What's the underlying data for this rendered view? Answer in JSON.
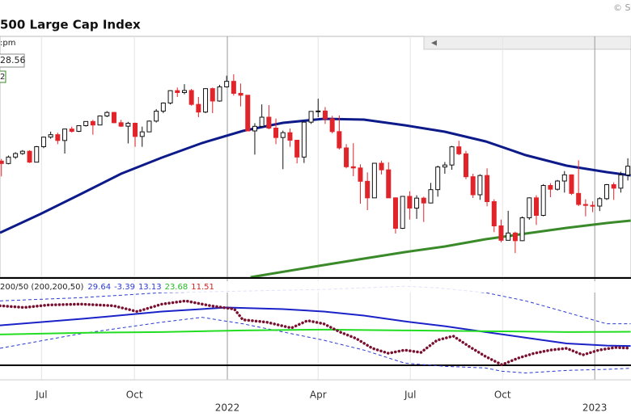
{
  "header": {
    "title": "500 Large Cap Index",
    "copyright": "© St",
    "time": ":pm",
    "last": "28.56",
    "badge": "2"
  },
  "chart_data": [
    {
      "type": "candlestick",
      "x": [
        0,
        1,
        2,
        3,
        4,
        5,
        6,
        7,
        8,
        9,
        10,
        11,
        12,
        13,
        14,
        15,
        16,
        17,
        18,
        19,
        20,
        21,
        22,
        23,
        24,
        25,
        26,
        27,
        28,
        29,
        30,
        31,
        32,
        33,
        34,
        35,
        36,
        37,
        38,
        39,
        40,
        41,
        42,
        43,
        44,
        45,
        46,
        47,
        48,
        49,
        50,
        51,
        52,
        53,
        54,
        55,
        56,
        57,
        58,
        59,
        60,
        61,
        62,
        63,
        64,
        65,
        66,
        67,
        68,
        69,
        70,
        71,
        72,
        73,
        74,
        75,
        76,
        77,
        78,
        79,
        80,
        81,
        82,
        83,
        84,
        85,
        86,
        87,
        88,
        89,
        90
      ],
      "open": [
        4150,
        4174,
        4156,
        4204,
        4230,
        4247,
        4166,
        4281,
        4352,
        4370,
        4327,
        4412,
        4395,
        4437,
        4468,
        4442,
        4509,
        4535,
        4459,
        4433,
        4455,
        4357,
        4391,
        4471,
        4545,
        4605,
        4697,
        4683,
        4698,
        4595,
        4538,
        4712,
        4620,
        4725,
        4766,
        4677,
        4663,
        4398,
        4432,
        4500,
        4419,
        4349,
        4385,
        4329,
        4204,
        4463,
        4543,
        4546,
        4488,
        4393,
        4272,
        4132,
        4123,
        4024,
        3901,
        4158,
        4109,
        3901,
        3675,
        3912,
        3825,
        3899,
        3863,
        3962,
        4130,
        4145,
        4280,
        4228,
        4058,
        3924,
        4067,
        3873,
        3693,
        3586,
        3640,
        3583,
        3753,
        3901,
        3771,
        3993,
        3965,
        4026,
        4072,
        3934,
        3852,
        3845,
        3840,
        3895,
        3999,
        3973,
        4071
      ],
      "high": [
        4200,
        4190,
        4215,
        4240,
        4256,
        4255,
        4286,
        4356,
        4393,
        4385,
        4415,
        4430,
        4440,
        4470,
        4480,
        4513,
        4545,
        4540,
        4480,
        4465,
        4460,
        4430,
        4475,
        4560,
        4610,
        4700,
        4720,
        4745,
        4710,
        4650,
        4715,
        4720,
        4740,
        4808,
        4818,
        4750,
        4665,
        4455,
        4595,
        4590,
        4490,
        4400,
        4416,
        4330,
        4465,
        4545,
        4637,
        4575,
        4510,
        4513,
        4300,
        4307,
        4150,
        4090,
        4160,
        4177,
        4165,
        3905,
        3915,
        3950,
        3920,
        3910,
        4012,
        4140,
        4167,
        4287,
        4325,
        4250,
        4080,
        4076,
        4120,
        3890,
        3740,
        3805,
        3650,
        3763,
        3905,
        3920,
        4003,
        4010,
        4034,
        4100,
        4075,
        4180,
        3890,
        3875,
        3906,
        4004,
        4016,
        4095,
        4195
      ],
      "low": [
        4130,
        4060,
        4150,
        4190,
        4220,
        4160,
        4165,
        4270,
        4340,
        4300,
        4230,
        4385,
        4390,
        4430,
        4370,
        4440,
        4500,
        4455,
        4427,
        4305,
        4280,
        4280,
        4390,
        4460,
        4530,
        4595,
        4650,
        4670,
        4585,
        4500,
        4530,
        4530,
        4615,
        4720,
        4660,
        4580,
        4395,
        4222,
        4430,
        4410,
        4300,
        4114,
        4280,
        4157,
        4160,
        4450,
        4500,
        4450,
        4380,
        4260,
        4120,
        4062,
        3858,
        3810,
        3900,
        4075,
        3900,
        3636,
        3670,
        3740,
        3745,
        3722,
        3860,
        3910,
        4080,
        4110,
        4218,
        4040,
        3900,
        3886,
        3838,
        3647,
        3571,
        3585,
        3491,
        3580,
        3738,
        3700,
        3764,
        3906,
        3955,
        3940,
        3923,
        3840,
        3764,
        3795,
        3803,
        3885,
        3886,
        3940,
        4030
      ],
      "close": [
        4174,
        4156,
        4204,
        4230,
        4247,
        4166,
        4281,
        4352,
        4370,
        4327,
        4412,
        4395,
        4437,
        4468,
        4442,
        4509,
        4535,
        4459,
        4433,
        4455,
        4357,
        4391,
        4471,
        4545,
        4605,
        4697,
        4683,
        4698,
        4595,
        4538,
        4712,
        4620,
        4725,
        4766,
        4677,
        4663,
        4398,
        4432,
        4500,
        4419,
        4349,
        4385,
        4329,
        4204,
        4463,
        4543,
        4546,
        4488,
        4393,
        4272,
        4132,
        4123,
        4024,
        3901,
        4158,
        4109,
        3901,
        3675,
        3912,
        3825,
        3899,
        3863,
        3962,
        4130,
        4145,
        4280,
        4228,
        4058,
        3924,
        4067,
        3873,
        3693,
        3586,
        3640,
        3583,
        3753,
        3901,
        3771,
        3993,
        3965,
        4026,
        4072,
        3934,
        3852,
        3845,
        3840,
        3895,
        3999,
        3973,
        4071,
        4136
      ],
      "up_color": "#111111",
      "down_color": "#e0242a",
      "xlim": [
        0.8,
        90.45
      ],
      "ylim": [
        3312,
        5100
      ],
      "xticks": [
        {
          "value": 6.7,
          "label": "Jul"
        },
        {
          "value": 19.9,
          "label": "Oct"
        },
        {
          "value": 33.1,
          "label": "2022"
        },
        {
          "value": 46,
          "label": "Apr"
        },
        {
          "value": 59.1,
          "label": "Jul"
        },
        {
          "value": 72.2,
          "label": "Oct"
        },
        {
          "value": 85.3,
          "label": "2023"
        }
      ],
      "lines": [
        {
          "color": "#0d1a8a",
          "x": [
            0.8,
            6.5,
            12.3,
            18,
            23.8,
            29.5,
            35.3,
            41,
            46.8,
            52.5,
            58.3,
            64,
            69.8,
            75.5,
            81.3,
            87,
            90.4
          ],
          "values": [
            3642,
            3780,
            3930,
            4080,
            4200,
            4308,
            4398,
            4458,
            4488,
            4482,
            4440,
            4392,
            4320,
            4218,
            4140,
            4092,
            4068
          ]
        },
        {
          "color": "#3a8a2a",
          "x": [
            36.4,
            46.8,
            52.5,
            58.3,
            64,
            69.8,
            75.5,
            81.3,
            87,
            90.4
          ],
          "values": [
            3312,
            3402,
            3450,
            3498,
            3540,
            3594,
            3636,
            3678,
            3714,
            3732
          ]
        }
      ]
    },
    {
      "type": "line",
      "title": "200/50 (200,200,50)",
      "readout": [
        {
          "value": 29.64,
          "color": "#2a3ad0"
        },
        {
          "value": -3.39,
          "color": "#2a3ad0"
        },
        {
          "value": 13.13,
          "color": "#2a3ad0"
        },
        {
          "value": 23.68,
          "color": "#22bb22"
        },
        {
          "value": 11.51,
          "color": "#d02020"
        }
      ],
      "xlim": [
        0.8,
        90.45
      ],
      "ylim": [
        -9,
        63
      ],
      "series": [
        {
          "color": "#2a3ad0",
          "style": "dashed",
          "x": [
            0.8,
            12.3,
            23.8,
            35.3,
            46.8,
            52.5,
            58.3,
            62.9,
            69.8,
            75.5,
            81.3,
            87,
            90.4
          ],
          "values": [
            46.6,
            49.0,
            52.7,
            53.9,
            55.1,
            56.3,
            57.5,
            56.3,
            52.7,
            46.6,
            38.1,
            29.6,
            29.6
          ]
        },
        {
          "color": "#2a3ad0",
          "style": "dashed",
          "x": [
            0.8,
            12.3,
            23.8,
            29.5,
            35.3,
            46.8,
            52.5,
            58.3,
            64,
            69.8,
            72.1,
            75.5,
            81.3,
            87,
            90.4
          ],
          "values": [
            11.4,
            22.3,
            30.8,
            34.4,
            29.6,
            17.4,
            10.1,
            0.4,
            -2.0,
            -3.2,
            -5.6,
            -6.9,
            -5.0,
            -4.2,
            -3.4
          ]
        },
        {
          "color": "#1a22c8",
          "style": "solid",
          "x": [
            0.8,
            12.3,
            23.8,
            33,
            41,
            46.8,
            52.5,
            58.3,
            64,
            69.8,
            75.5,
            81.3,
            87,
            90.4
          ],
          "values": [
            28.4,
            33.2,
            38.7,
            41.7,
            40.5,
            38.7,
            35.7,
            31.4,
            27.8,
            23.5,
            19.3,
            15.0,
            13.4,
            13.1
          ]
        },
        {
          "color": "#22dd22",
          "style": "solid",
          "x": [
            0.8,
            12.3,
            23.8,
            35.3,
            46.8,
            58.3,
            69.8,
            81.3,
            90.4
          ],
          "values": [
            21.7,
            22.9,
            23.5,
            24.7,
            25.3,
            24.7,
            24.1,
            23.5,
            23.7
          ]
        },
        {
          "color": "#7a1030",
          "style": "dotted",
          "x": [
            0.8,
            4.25,
            7.7,
            12.3,
            16.9,
            20.3,
            23.8,
            27.2,
            30.7,
            34.1,
            35.3,
            38.7,
            42.2,
            44.5,
            46.8,
            49.1,
            51.4,
            53.7,
            56,
            58.3,
            60.6,
            62.9,
            65.2,
            67.5,
            69.8,
            72.1,
            74.4,
            76.7,
            79,
            81.3,
            83.6,
            85.9,
            88.2,
            90.4
          ],
          "values": [
            43.0,
            41.7,
            43.6,
            44.2,
            43.0,
            38.7,
            44.2,
            46.6,
            43.0,
            40.5,
            32.6,
            30.8,
            26.5,
            32.0,
            29.6,
            23.5,
            18.7,
            11.4,
            7.7,
            10.1,
            8.3,
            17.4,
            20.5,
            12.6,
            5.3,
            -0.8,
            4.1,
            7.7,
            10.1,
            11.4,
            6.5,
            10.1,
            12.0,
            11.5
          ]
        }
      ]
    }
  ]
}
